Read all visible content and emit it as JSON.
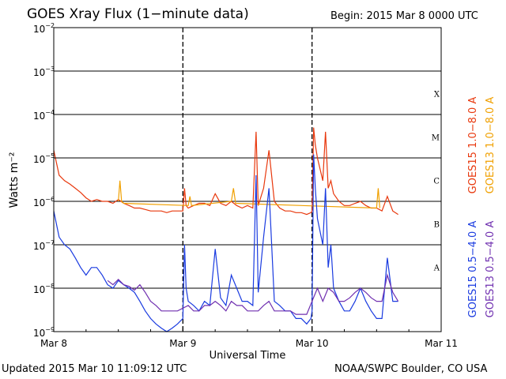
{
  "header": {
    "title": "GOES Xray Flux (1−minute data)",
    "begin": "Begin:  2015 Mar 8 0000 UTC"
  },
  "footer": {
    "updated": "Updated 2015 Mar 10 11:09:12 UTC",
    "credit": "NOAA/SWPC Boulder, CO USA"
  },
  "chart_data": {
    "type": "line",
    "title": "GOES Xray Flux (1−minute data)",
    "xlabel": "Universal Time",
    "ylabel": "Watts m⁻²",
    "yscale": "log",
    "ylim": [
      1e-09,
      0.01
    ],
    "xlim_hours": [
      0,
      72
    ],
    "x_unit": "hours since 2015 Mar 8 0000 UTC",
    "x_ticks": [
      {
        "hour": 0,
        "label": "Mar 8"
      },
      {
        "hour": 24,
        "label": "Mar 9"
      },
      {
        "hour": 48,
        "label": "Mar 10"
      },
      {
        "hour": 72,
        "label": "Mar 11"
      }
    ],
    "y_ticks": [
      {
        "base": "10",
        "exp": "−2",
        "value": 0.01
      },
      {
        "base": "10",
        "exp": "−3",
        "value": 0.001
      },
      {
        "base": "10",
        "exp": "−4",
        "value": 0.0001
      },
      {
        "base": "10",
        "exp": "−5",
        "value": 1e-05
      },
      {
        "base": "10",
        "exp": "−6",
        "value": 1e-06
      },
      {
        "base": "10",
        "exp": "−7",
        "value": 1e-07
      },
      {
        "base": "10",
        "exp": "−8",
        "value": 1e-08
      },
      {
        "base": "10",
        "exp": "−9",
        "value": 1e-09
      }
    ],
    "flare_classes": [
      {
        "label": "X",
        "value": 0.0001
      },
      {
        "label": "M",
        "value": 1e-05
      },
      {
        "label": "C",
        "value": 1e-06
      },
      {
        "label": "B",
        "value": 1e-07
      },
      {
        "label": "A",
        "value": 1e-08
      }
    ],
    "grid": "horizontal at each decade; dashed vertical at day boundaries",
    "legend_position": "right",
    "series": [
      {
        "name": "GOES15 1.0−8.0 A",
        "color": "#e8380d",
        "x": [
          0,
          1,
          2,
          3,
          4,
          5,
          6,
          7,
          8,
          9,
          10,
          11,
          12,
          13,
          14,
          15,
          16,
          17,
          18,
          19,
          20,
          21,
          22,
          23,
          24,
          24.3,
          24.6,
          25,
          26,
          27,
          28,
          29,
          30,
          31,
          32,
          33,
          34,
          35,
          36,
          37,
          37.6,
          38,
          39,
          40,
          41,
          42,
          43,
          44,
          45,
          46,
          47,
          47.8,
          48,
          48.3,
          48.6,
          49,
          50,
          50.5,
          51,
          51.5,
          52,
          53,
          54,
          55,
          56,
          57,
          58,
          59,
          60,
          61,
          62,
          63,
          64
        ],
        "y": [
          1.5e-05,
          4e-06,
          3e-06,
          2.5e-06,
          2e-06,
          1.6e-06,
          1.2e-06,
          1e-06,
          1.1e-06,
          1e-06,
          1e-06,
          9e-07,
          1.1e-06,
          9e-07,
          8e-07,
          7e-07,
          7e-07,
          6.5e-07,
          6e-07,
          6e-07,
          6e-07,
          5.5e-07,
          6e-07,
          6e-07,
          6e-07,
          2e-06,
          8e-07,
          7e-07,
          8e-07,
          9e-07,
          9e-07,
          8e-07,
          1.5e-06,
          9e-07,
          8e-07,
          1e-06,
          8e-07,
          7e-07,
          8e-07,
          7e-07,
          4e-05,
          8e-07,
          2e-06,
          1.5e-05,
          1e-06,
          7e-07,
          6e-07,
          6e-07,
          5.5e-07,
          5.5e-07,
          5e-07,
          5.5e-07,
          6e-07,
          5e-05,
          2e-05,
          1e-05,
          3e-06,
          4e-05,
          2e-06,
          3e-06,
          1.5e-06,
          1e-06,
          8e-07,
          8e-07,
          9e-07,
          1e-06,
          8e-07,
          7e-07,
          7e-07,
          6e-07,
          1.3e-06,
          6e-07,
          5e-07
        ]
      },
      {
        "name": "GOES13 1.0−8.0 A",
        "color": "#f0a000",
        "x": [
          12,
          12.3,
          12.6,
          13,
          25,
          25.3,
          25.6,
          33,
          33.4,
          33.8,
          60,
          60.3,
          60.6
        ],
        "y": [
          1e-06,
          3e-06,
          1e-06,
          9e-07,
          8e-07,
          1.3e-06,
          8e-07,
          1e-06,
          2e-06,
          9e-07,
          7e-07,
          2e-06,
          7e-07
        ]
      },
      {
        "name": "GOES15 0.5−4.0 A",
        "color": "#1a3be0",
        "x": [
          0,
          1,
          2,
          3,
          4,
          5,
          6,
          7,
          8,
          9,
          10,
          11,
          12,
          13,
          14,
          15,
          16,
          17,
          18,
          19,
          20,
          21,
          22,
          23,
          24,
          24.3,
          24.6,
          25,
          26,
          27,
          28,
          29,
          30,
          31,
          32,
          33,
          34,
          35,
          36,
          37,
          37.6,
          38,
          39,
          40,
          41,
          42,
          43,
          44,
          45,
          46,
          47,
          47.8,
          48,
          48.3,
          48.6,
          49,
          50,
          50.5,
          51,
          51.5,
          52,
          53,
          54,
          55,
          56,
          57,
          58,
          59,
          60,
          61,
          62,
          63,
          64
        ],
        "y": [
          6e-07,
          1.5e-07,
          1e-07,
          8e-08,
          5e-08,
          3e-08,
          2e-08,
          3e-08,
          3e-08,
          2e-08,
          1.2e-08,
          1e-08,
          1.5e-08,
          1.2e-08,
          1e-08,
          8e-09,
          5e-09,
          3e-09,
          2e-09,
          1.5e-09,
          1.2e-09,
          1e-09,
          1.2e-09,
          1.5e-09,
          2e-09,
          1e-07,
          1e-08,
          5e-09,
          4e-09,
          3e-09,
          5e-09,
          4e-09,
          8e-08,
          6e-09,
          4e-09,
          2e-08,
          1e-08,
          5e-09,
          5e-09,
          4e-09,
          4e-06,
          8e-09,
          1.5e-07,
          2e-06,
          5e-09,
          4e-09,
          3e-09,
          3e-09,
          2e-09,
          2e-09,
          1.5e-09,
          2e-09,
          3e-09,
          1.2e-05,
          2e-06,
          4e-07,
          1e-07,
          2e-06,
          3e-08,
          1e-07,
          1e-08,
          5e-09,
          3e-09,
          3e-09,
          5e-09,
          1e-08,
          5e-09,
          3e-09,
          2e-09,
          2e-09,
          5e-08,
          5e-09,
          5e-09
        ]
      },
      {
        "name": "GOES13 0.5−4.0 A",
        "color": "#7030b0",
        "x": [
          10,
          11,
          12,
          13,
          14,
          15,
          16,
          17,
          18,
          19,
          20,
          21,
          22,
          23,
          25,
          26,
          27,
          28,
          29,
          30,
          31,
          32,
          33,
          34,
          35,
          36,
          37,
          38,
          39,
          40,
          41,
          42,
          43,
          44,
          45,
          46,
          47,
          49,
          50,
          51,
          52,
          53,
          54,
          55,
          56,
          57,
          58,
          59,
          60,
          61,
          62,
          63,
          64
        ],
        "y": [
          1.5e-08,
          1.2e-08,
          1.6e-08,
          1.2e-08,
          1.1e-08,
          9e-09,
          1.2e-08,
          8e-09,
          5e-09,
          4e-09,
          3e-09,
          3e-09,
          3e-09,
          3e-09,
          4e-09,
          3e-09,
          3e-09,
          4e-09,
          4e-09,
          5e-09,
          4e-09,
          3e-09,
          5e-09,
          4e-09,
          4e-09,
          3e-09,
          3e-09,
          3e-09,
          4e-09,
          5e-09,
          3e-09,
          3e-09,
          3e-09,
          3e-09,
          2.5e-09,
          2.5e-09,
          2.5e-09,
          1e-08,
          5e-09,
          1e-08,
          8e-09,
          5e-09,
          5e-09,
          6e-09,
          8e-09,
          1e-08,
          8e-09,
          6e-09,
          5e-09,
          5e-09,
          2e-08,
          8e-09,
          5e-09
        ]
      }
    ]
  }
}
